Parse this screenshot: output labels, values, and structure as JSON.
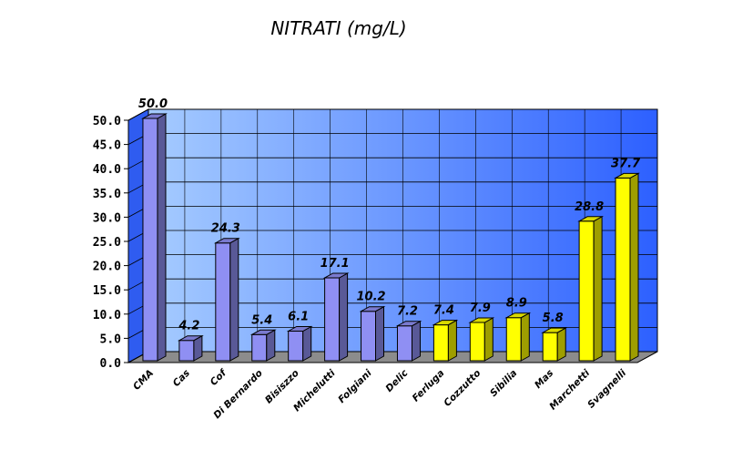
{
  "chart_data": {
    "type": "bar",
    "title": "NITRATI (mg/L)",
    "xlabel": "",
    "ylabel": "",
    "ylim": [
      0,
      50
    ],
    "yticks": [
      "0.0",
      "5.0",
      "10.0",
      "15.0",
      "20.0",
      "25.0",
      "30.0",
      "35.0",
      "40.0",
      "45.0",
      "50.0"
    ],
    "grid": true,
    "legend": "none",
    "categories": [
      "CMA",
      "Cas",
      "Cof",
      "Di Bernardo",
      "Bisiszzo",
      "Michelutti",
      "Folgiani",
      "Delic",
      "Ferluga",
      "Cozzutto",
      "Sibilia",
      "Mas",
      "Marchetti",
      "Svagnelli"
    ],
    "values": [
      50.0,
      4.2,
      24.3,
      5.4,
      6.1,
      17.1,
      10.2,
      7.2,
      7.4,
      7.9,
      8.9,
      5.8,
      28.8,
      37.7
    ],
    "value_labels": [
      "50.0",
      "4.2",
      "24.3",
      "5.4",
      "6.1",
      "17.1",
      "10.2",
      "7.2",
      "7.4",
      "7.9",
      "8.9",
      "5.8",
      "28.8",
      "37.7"
    ],
    "bar_groups": [
      "purple",
      "purple",
      "purple",
      "purple",
      "purple",
      "purple",
      "purple",
      "purple",
      "yellow",
      "yellow",
      "yellow",
      "yellow",
      "yellow",
      "yellow"
    ],
    "colors": {
      "purple": "#8f8ff3",
      "yellow": "#ffff00",
      "wall_light": "#a6ccff",
      "wall_dark": "#2d60ff",
      "floor": "#8c8c8c"
    }
  }
}
